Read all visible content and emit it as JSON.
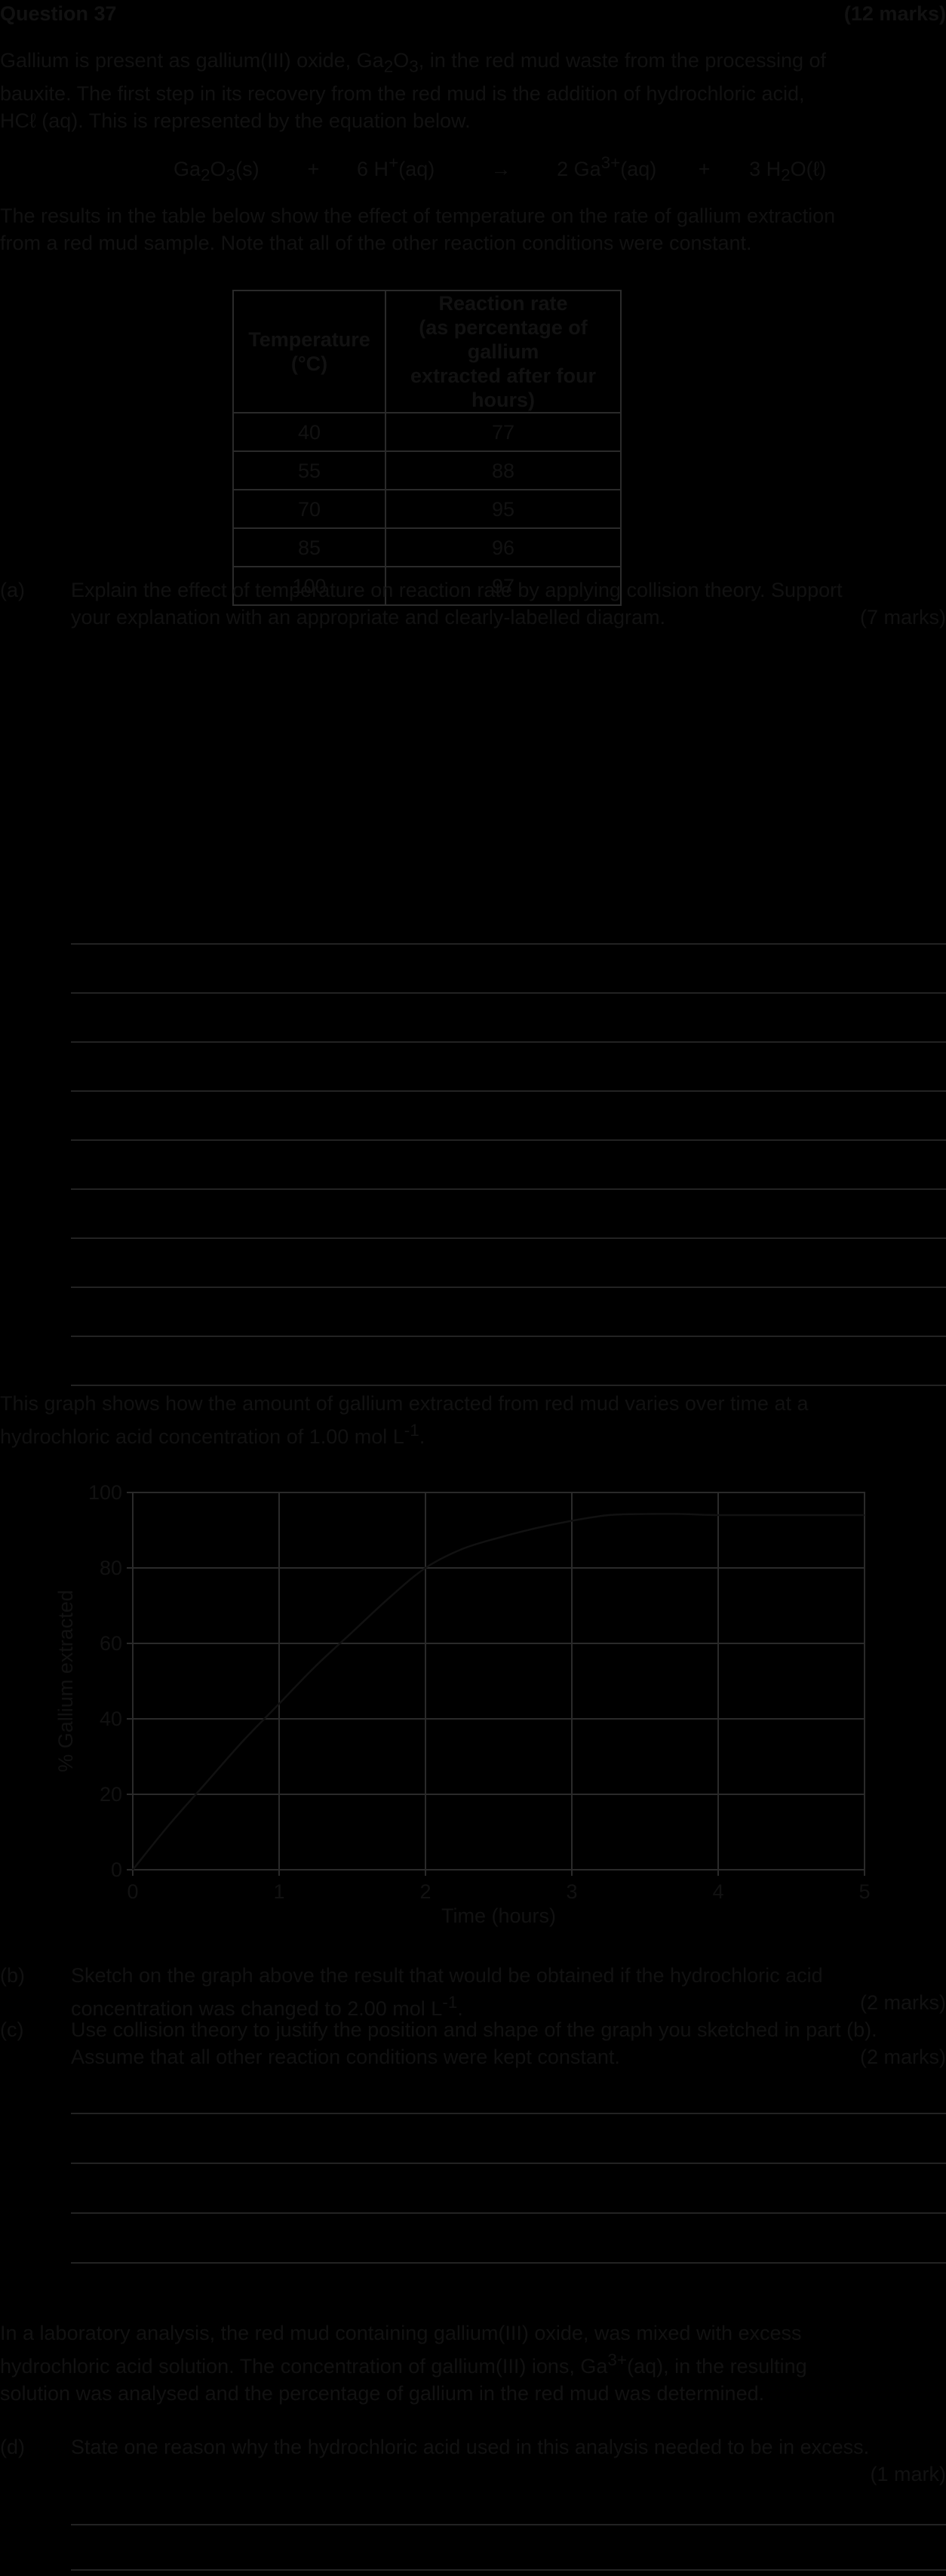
{
  "header": {
    "question": "Question 37",
    "marks": "(12 marks)"
  },
  "intro": {
    "line1_a": "Gallium is present as gallium(III) oxide, Ga",
    "line1_sub1": "2",
    "line1_b": "O",
    "line1_sub2": "3",
    "line1_c": ", in the red mud waste from the processing of",
    "line2": "bauxite. The first step in its recovery from the red mud is the addition of hydrochloric acid,",
    "line3": "HCℓ (aq). This is represented by the equation below."
  },
  "equation": {
    "reactant1_a": "Ga",
    "reactant1_sub1": "2",
    "reactant1_b": "O",
    "reactant1_sub2": "3",
    "reactant1_c": "(s)",
    "plus1": "+",
    "reactant2_a": "6 H",
    "reactant2_sup": "+",
    "reactant2_b": "(aq)",
    "arrow": "→",
    "product1_a": "2 Ga",
    "product1_sup": "3+",
    "product1_b": "(aq)",
    "plus2": "+",
    "product2_a": "3 H",
    "product2_sub": "2",
    "product2_b": "O(ℓ)"
  },
  "results_intro": {
    "line1": "The results in the table below show the effect of temperature on the rate of gallium extraction",
    "line2": "from a red mud sample. Note that all of the other reaction conditions were constant."
  },
  "table": {
    "col1_line1": "Temperature",
    "col1_line2": "(°C)",
    "col2_line1": "Reaction rate",
    "col2_line2": "(as percentage of gallium",
    "col2_line3": "extracted after four hours)",
    "rows": [
      {
        "temp": "40",
        "rate": "77"
      },
      {
        "temp": "55",
        "rate": "88"
      },
      {
        "temp": "70",
        "rate": "95"
      },
      {
        "temp": "85",
        "rate": "96"
      },
      {
        "temp": "100",
        "rate": "97"
      }
    ]
  },
  "part_a": {
    "label": "(a)",
    "line1": "Explain the effect of temperature on reaction rate by applying collision theory. Support",
    "line2": "your explanation with an appropriate and clearly-labelled diagram.",
    "marks": "(7 marks)"
  },
  "graph_intro": {
    "line1": "This graph shows how the amount of gallium extracted from red mud varies over time at a",
    "line2_a": "hydrochloric acid concentration of 1.00 mol L",
    "line2_sup": "-1",
    "line2_b": "."
  },
  "chart_data": {
    "type": "line",
    "xlabel": "Time (hours)",
    "ylabel": "% Gallium extracted",
    "xlim": [
      0,
      5
    ],
    "ylim": [
      0,
      100
    ],
    "xticks": [
      "0",
      "1",
      "2",
      "3",
      "4",
      "5"
    ],
    "yticks": [
      "0",
      "20",
      "40",
      "60",
      "80",
      "100"
    ],
    "grid": true,
    "x": [
      0,
      0.25,
      0.5,
      0.75,
      1.0,
      1.25,
      1.5,
      1.75,
      2.0,
      2.25,
      2.5,
      2.75,
      3.0,
      3.25,
      3.5,
      3.75,
      4.0,
      4.5,
      5.0
    ],
    "y": [
      0,
      12,
      23,
      34,
      44,
      54,
      63,
      72,
      80,
      85,
      88,
      90.5,
      92.5,
      94,
      94.3,
      94.3,
      94,
      94,
      94
    ],
    "line_color": "#111111"
  },
  "part_b": {
    "label": "(b)",
    "line1": "Sketch on the graph above the result that would be obtained if the hydrochloric acid",
    "line2_a": "concentration was changed to 2.00 mol L",
    "line2_sup": "-1",
    "line2_b": ".",
    "marks": "(2 marks)"
  },
  "part_c": {
    "label": "(c)",
    "line1": "Use collision theory to justify the position and shape of the graph you sketched in part (b).",
    "line2": "Assume that all other reaction conditions were kept constant.",
    "marks": "(2 marks)"
  },
  "lab_intro": {
    "line1": "In a laboratory analysis, the red mud containing gallium(III) oxide, was mixed with excess",
    "line2_a": "hydrochloric acid solution. The concentration of gallium(III) ions, Ga",
    "line2_sup": "3+",
    "line2_b": "(aq), in the resulting",
    "line3": "solution was analysed and the percentage of gallium in the red mud was determined."
  },
  "part_d": {
    "label": "(d)",
    "line1": "State one reason why the hydrochloric acid used in this analysis needed to be in excess.",
    "marks": "(1 mark)"
  }
}
